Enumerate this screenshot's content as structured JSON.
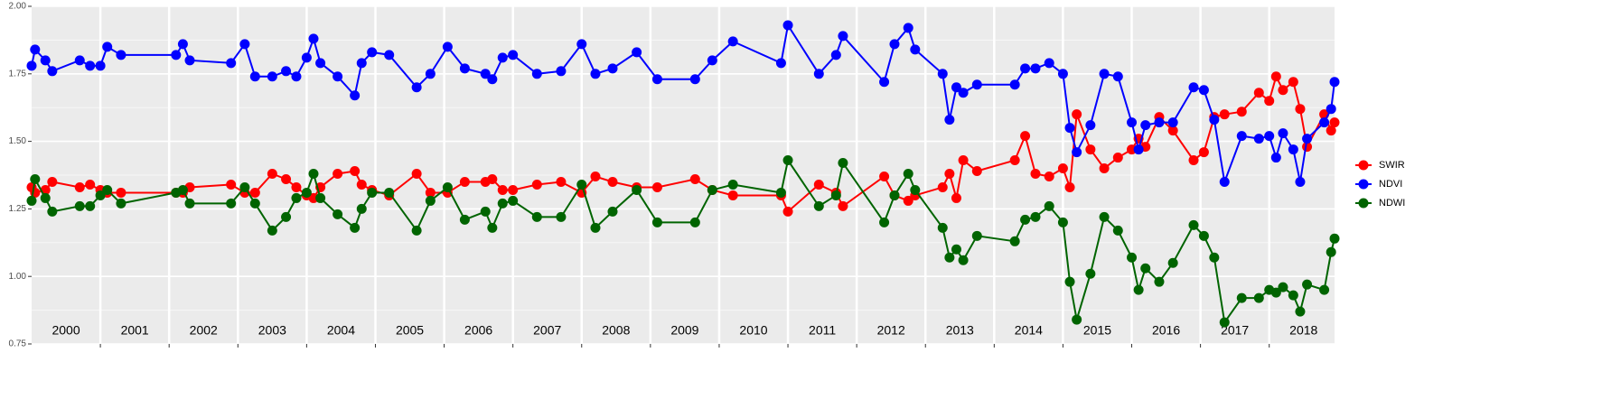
{
  "chart_data": {
    "type": "line",
    "x": [
      2000.0,
      2000.05,
      2000.2,
      2000.3,
      2000.7,
      2000.85,
      2001.0,
      2001.1,
      2001.3,
      2002.1,
      2002.2,
      2002.3,
      2002.9,
      2003.1,
      2003.25,
      2003.5,
      2003.7,
      2003.85,
      2004.0,
      2004.1,
      2004.2,
      2004.45,
      2004.7,
      2004.8,
      2004.95,
      2005.2,
      2005.6,
      2005.8,
      2006.05,
      2006.3,
      2006.6,
      2006.7,
      2006.85,
      2007.0,
      2007.35,
      2007.7,
      2008.0,
      2008.2,
      2008.45,
      2008.8,
      2009.1,
      2009.65,
      2009.9,
      2010.2,
      2010.9,
      2011.0,
      2011.45,
      2011.7,
      2011.8,
      2012.4,
      2012.55,
      2012.75,
      2012.85,
      2013.25,
      2013.35,
      2013.45,
      2013.55,
      2013.75,
      2014.3,
      2014.45,
      2014.6,
      2014.8,
      2015.0,
      2015.1,
      2015.2,
      2015.4,
      2015.6,
      2015.8,
      2016.0,
      2016.1,
      2016.2,
      2016.4,
      2016.6,
      2016.9,
      2017.05,
      2017.2,
      2017.35,
      2017.6,
      2017.85,
      2018.0,
      2018.1,
      2018.2,
      2018.35,
      2018.45,
      2018.55,
      2018.8,
      2018.9,
      2018.95
    ],
    "series": [
      {
        "name": "SWIR",
        "color": "#ff0000",
        "values": [
          1.33,
          1.31,
          1.32,
          1.35,
          1.33,
          1.34,
          1.32,
          1.31,
          1.31,
          1.31,
          1.31,
          1.33,
          1.34,
          1.31,
          1.31,
          1.38,
          1.36,
          1.33,
          1.3,
          1.29,
          1.33,
          1.38,
          1.39,
          1.34,
          1.32,
          1.3,
          1.38,
          1.31,
          1.31,
          1.35,
          1.35,
          1.36,
          1.32,
          1.32,
          1.34,
          1.35,
          1.31,
          1.37,
          1.35,
          1.33,
          1.33,
          1.36,
          1.32,
          1.3,
          1.3,
          1.24,
          1.34,
          1.31,
          1.26,
          1.37,
          1.3,
          1.28,
          1.3,
          1.33,
          1.38,
          1.29,
          1.43,
          1.39,
          1.43,
          1.52,
          1.38,
          1.37,
          1.4,
          1.33,
          1.6,
          1.47,
          1.4,
          1.44,
          1.47,
          1.51,
          1.48,
          1.59,
          1.54,
          1.43,
          1.46,
          1.59,
          1.6,
          1.61,
          1.68,
          1.65,
          1.74,
          1.69,
          1.72,
          1.62,
          1.48,
          1.6,
          1.54,
          1.57
        ]
      },
      {
        "name": "NDVI",
        "color": "#0000ff",
        "values": [
          1.78,
          1.84,
          1.8,
          1.76,
          1.8,
          1.78,
          1.78,
          1.85,
          1.82,
          1.82,
          1.86,
          1.8,
          1.79,
          1.86,
          1.74,
          1.74,
          1.76,
          1.74,
          1.81,
          1.88,
          1.79,
          1.74,
          1.67,
          1.79,
          1.83,
          1.82,
          1.7,
          1.75,
          1.85,
          1.77,
          1.75,
          1.73,
          1.81,
          1.82,
          1.75,
          1.76,
          1.86,
          1.75,
          1.77,
          1.83,
          1.73,
          1.73,
          1.8,
          1.87,
          1.79,
          1.93,
          1.75,
          1.82,
          1.89,
          1.72,
          1.86,
          1.92,
          1.84,
          1.75,
          1.58,
          1.7,
          1.68,
          1.71,
          1.71,
          1.77,
          1.77,
          1.79,
          1.75,
          1.55,
          1.46,
          1.56,
          1.75,
          1.74,
          1.57,
          1.47,
          1.56,
          1.57,
          1.57,
          1.7,
          1.69,
          1.58,
          1.35,
          1.52,
          1.51,
          1.52,
          1.44,
          1.53,
          1.47,
          1.35,
          1.51,
          1.57,
          1.62,
          1.72
        ]
      },
      {
        "name": "NDWI",
        "color": "#006400",
        "values": [
          1.28,
          1.36,
          1.29,
          1.24,
          1.26,
          1.26,
          1.3,
          1.32,
          1.27,
          1.31,
          1.32,
          1.27,
          1.27,
          1.33,
          1.27,
          1.17,
          1.22,
          1.29,
          1.31,
          1.38,
          1.29,
          1.23,
          1.18,
          1.25,
          1.31,
          1.31,
          1.17,
          1.28,
          1.33,
          1.21,
          1.24,
          1.18,
          1.27,
          1.28,
          1.22,
          1.22,
          1.34,
          1.18,
          1.24,
          1.32,
          1.2,
          1.2,
          1.32,
          1.34,
          1.31,
          1.43,
          1.26,
          1.3,
          1.42,
          1.2,
          1.3,
          1.38,
          1.32,
          1.18,
          1.07,
          1.1,
          1.06,
          1.15,
          1.13,
          1.21,
          1.22,
          1.26,
          1.2,
          0.98,
          0.84,
          1.01,
          1.22,
          1.17,
          1.07,
          0.95,
          1.03,
          0.98,
          1.05,
          1.19,
          1.15,
          1.07,
          0.83,
          0.92,
          0.92,
          0.95,
          0.94,
          0.96,
          0.93,
          0.87,
          0.97,
          0.95,
          1.09,
          1.14
        ]
      }
    ],
    "xlim": [
      2000,
      2018.95
    ],
    "xticks": [
      {
        "value": 2000.5,
        "label": "2000"
      },
      {
        "value": 2001.5,
        "label": "2001"
      },
      {
        "value": 2002.5,
        "label": "2002"
      },
      {
        "value": 2003.5,
        "label": "2003"
      },
      {
        "value": 2004.5,
        "label": "2004"
      },
      {
        "value": 2005.5,
        "label": "2005"
      },
      {
        "value": 2006.5,
        "label": "2006"
      },
      {
        "value": 2007.5,
        "label": "2007"
      },
      {
        "value": 2008.5,
        "label": "2008"
      },
      {
        "value": 2009.5,
        "label": "2009"
      },
      {
        "value": 2010.5,
        "label": "2010"
      },
      {
        "value": 2011.5,
        "label": "2011"
      },
      {
        "value": 2012.5,
        "label": "2012"
      },
      {
        "value": 2013.5,
        "label": "2013"
      },
      {
        "value": 2014.5,
        "label": "2014"
      },
      {
        "value": 2015.5,
        "label": "2015"
      },
      {
        "value": 2016.5,
        "label": "2016"
      },
      {
        "value": 2017.5,
        "label": "2017"
      },
      {
        "value": 2018.5,
        "label": "2018"
      }
    ],
    "x_boundaries": [
      2001,
      2002,
      2003,
      2004,
      2005,
      2006,
      2007,
      2008,
      2009,
      2010,
      2011,
      2012,
      2013,
      2014,
      2015,
      2016,
      2017,
      2018
    ],
    "ylim": [
      0.75,
      2.0
    ],
    "yticks": [
      0.75,
      {
        "value": 1.0,
        "label": "1.00"
      },
      1.25,
      {
        "value": 1.5,
        "label": "1.50"
      },
      1.75,
      {
        "value": 2.0,
        "label": "2.00"
      }
    ],
    "grid": true,
    "legend": "right"
  }
}
